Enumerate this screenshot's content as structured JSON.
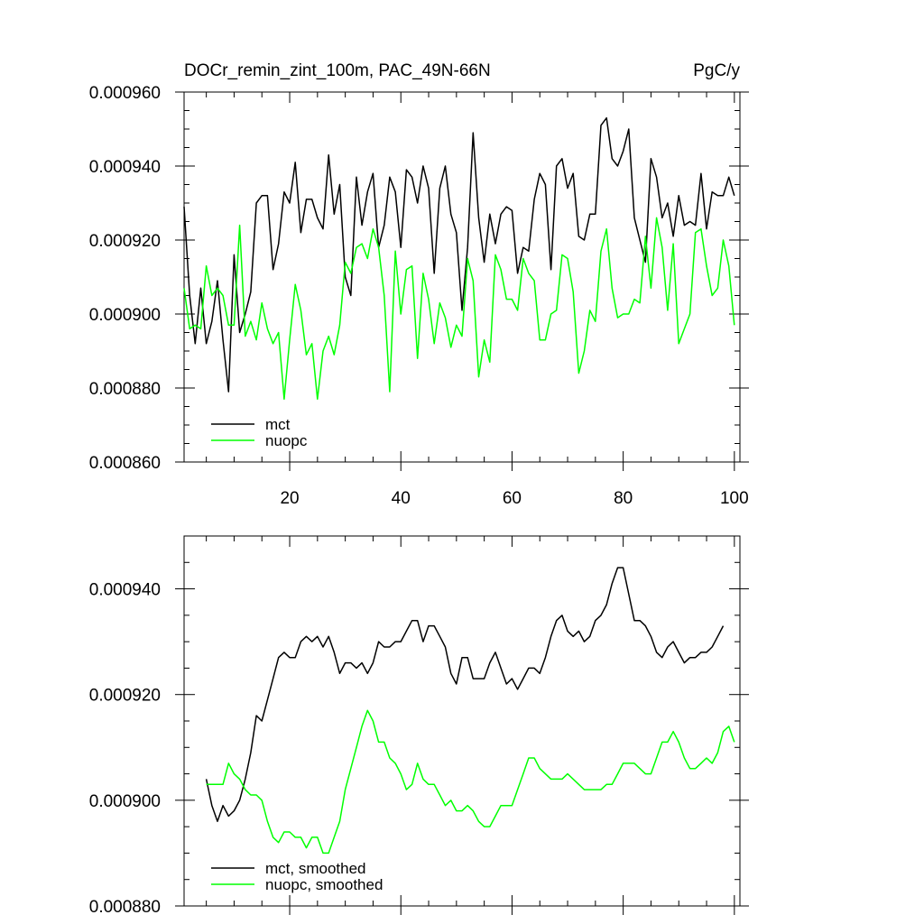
{
  "chart_data": [
    {
      "type": "line",
      "title": "DOCr_remin_zint_100m, PAC_49N-66N",
      "units": "PgC/y",
      "xlim": [
        1,
        101
      ],
      "ylim": [
        0.00086,
        0.00096
      ],
      "x_ticks": [
        20,
        40,
        60,
        80,
        100
      ],
      "x_tick_labels": [
        "20",
        "40",
        "60",
        "80",
        "100"
      ],
      "y_ticks": [
        0.00086,
        0.00088,
        0.0009,
        0.00092,
        0.00094,
        0.00096
      ],
      "y_tick_labels": [
        "0.000860",
        "0.000880",
        "0.000900",
        "0.000920",
        "0.000940",
        "0.000960"
      ],
      "legend_position": "bottom-left",
      "x_start": 1,
      "series": [
        {
          "name": "mct",
          "color": "#000000",
          "values": [
            0.000929,
            0.000905,
            0.000892,
            0.000907,
            0.000892,
            0.000898,
            0.000909,
            0.000893,
            0.000879,
            0.000916,
            0.000895,
            0.0009,
            0.000906,
            0.00093,
            0.000932,
            0.000932,
            0.000912,
            0.000919,
            0.000933,
            0.00093,
            0.000941,
            0.000922,
            0.000931,
            0.000931,
            0.000926,
            0.000923,
            0.000943,
            0.000927,
            0.000935,
            0.00091,
            0.000905,
            0.000937,
            0.000924,
            0.000933,
            0.000938,
            0.000918,
            0.000924,
            0.000937,
            0.000933,
            0.000918,
            0.000939,
            0.000937,
            0.00093,
            0.00094,
            0.000934,
            0.000911,
            0.000934,
            0.00094,
            0.000927,
            0.000922,
            0.000901,
            0.000918,
            0.000949,
            0.000926,
            0.000914,
            0.000927,
            0.000919,
            0.000927,
            0.000929,
            0.000928,
            0.000911,
            0.000918,
            0.000917,
            0.000931,
            0.000938,
            0.000935,
            0.000912,
            0.00094,
            0.000942,
            0.000934,
            0.000938,
            0.000921,
            0.00092,
            0.000927,
            0.000927,
            0.000951,
            0.000953,
            0.000942,
            0.00094,
            0.000944,
            0.00095,
            0.000926,
            0.00092,
            0.000914,
            0.000942,
            0.000937,
            0.000926,
            0.00093,
            0.000921,
            0.000932,
            0.000924,
            0.000925,
            0.000924,
            0.000938,
            0.000923,
            0.000933,
            0.000932,
            0.000932,
            0.000937,
            0.000932
          ]
        },
        {
          "name": "nuopc",
          "color": "#00ff00",
          "values": [
            0.000907,
            0.000896,
            0.000897,
            0.000896,
            0.000913,
            0.000905,
            0.000907,
            0.000905,
            0.000897,
            0.000897,
            0.000924,
            0.000894,
            0.000898,
            0.000893,
            0.000903,
            0.000896,
            0.000892,
            0.000895,
            0.000877,
            0.000893,
            0.000908,
            0.000901,
            0.000889,
            0.000892,
            0.000877,
            0.00089,
            0.000894,
            0.000889,
            0.000897,
            0.000914,
            0.000911,
            0.000918,
            0.000919,
            0.000915,
            0.000923,
            0.000918,
            0.000905,
            0.000879,
            0.000917,
            0.0009,
            0.000912,
            0.000913,
            0.000888,
            0.000911,
            0.000904,
            0.000892,
            0.000903,
            0.000899,
            0.000891,
            0.000897,
            0.000894,
            0.000915,
            0.000909,
            0.000883,
            0.000893,
            0.000887,
            0.000916,
            0.000912,
            0.000904,
            0.000904,
            0.000901,
            0.000915,
            0.000911,
            0.000909,
            0.000893,
            0.000893,
            0.0009,
            0.000901,
            0.000916,
            0.000915,
            0.000906,
            0.000884,
            0.00089,
            0.000901,
            0.000898,
            0.000917,
            0.000923,
            0.000907,
            0.000899,
            0.0009,
            0.0009,
            0.000904,
            0.000903,
            0.000921,
            0.000907,
            0.000926,
            0.000918,
            0.000901,
            0.000919,
            0.000892,
            0.000896,
            0.0009,
            0.000922,
            0.000923,
            0.000913,
            0.000905,
            0.000907,
            0.00092,
            0.000913,
            0.000897
          ]
        }
      ]
    },
    {
      "type": "line",
      "title": "",
      "xlim": [
        1,
        101
      ],
      "ylim": [
        0.00088,
        0.00095
      ],
      "x_ticks": [
        20,
        40,
        60,
        80,
        100
      ],
      "x_tick_labels": [],
      "y_ticks": [
        0.00088,
        0.0009,
        0.00092,
        0.00094
      ],
      "y_tick_labels": [
        "0.000880",
        "0.000900",
        "0.000920",
        "0.000940"
      ],
      "legend_position": "bottom-left",
      "x_start": 5,
      "series": [
        {
          "name": "mct, smoothed",
          "color": "#000000",
          "values": [
            0.000904,
            0.000899,
            0.000896,
            0.000899,
            0.000897,
            0.000898,
            0.0009,
            0.000904,
            0.000909,
            0.000916,
            0.000915,
            0.000919,
            0.000923,
            0.000927,
            0.000928,
            0.000927,
            0.000927,
            0.00093,
            0.000931,
            0.00093,
            0.000931,
            0.000929,
            0.000931,
            0.000928,
            0.000924,
            0.000926,
            0.000926,
            0.000925,
            0.000926,
            0.000924,
            0.000926,
            0.00093,
            0.000929,
            0.000929,
            0.00093,
            0.00093,
            0.000932,
            0.000934,
            0.000934,
            0.00093,
            0.000933,
            0.000933,
            0.000931,
            0.000929,
            0.000924,
            0.000922,
            0.000927,
            0.000927,
            0.000923,
            0.000923,
            0.000923,
            0.000926,
            0.000928,
            0.000925,
            0.000922,
            0.000923,
            0.000921,
            0.000923,
            0.000925,
            0.000925,
            0.000924,
            0.000927,
            0.000931,
            0.000934,
            0.000935,
            0.000932,
            0.000931,
            0.000932,
            0.00093,
            0.000931,
            0.000934,
            0.000935,
            0.000937,
            0.000941,
            0.000944,
            0.000944,
            0.000939,
            0.000934,
            0.000934,
            0.000933,
            0.000931,
            0.000928,
            0.000927,
            0.000929,
            0.00093,
            0.000928,
            0.000926,
            0.000927,
            0.000927,
            0.000928,
            0.000928,
            0.000929,
            0.000931,
            0.000933
          ]
        },
        {
          "name": "nuopc, smoothed",
          "color": "#00ff00",
          "values": [
            0.000903,
            0.000903,
            0.000903,
            0.000903,
            0.000907,
            0.000905,
            0.000904,
            0.000902,
            0.000901,
            0.000901,
            0.0009,
            0.000896,
            0.000893,
            0.000892,
            0.000894,
            0.000894,
            0.000893,
            0.000893,
            0.000891,
            0.000893,
            0.000893,
            0.00089,
            0.00089,
            0.000893,
            0.000896,
            0.000902,
            0.000906,
            0.00091,
            0.000914,
            0.000917,
            0.000915,
            0.000911,
            0.000911,
            0.000908,
            0.000907,
            0.000905,
            0.000902,
            0.000903,
            0.000907,
            0.000904,
            0.000903,
            0.000903,
            0.000901,
            0.000899,
            0.0009,
            0.000898,
            0.000898,
            0.000899,
            0.000898,
            0.000896,
            0.000895,
            0.000895,
            0.000897,
            0.000899,
            0.000899,
            0.000899,
            0.000902,
            0.000905,
            0.000908,
            0.000908,
            0.000906,
            0.000905,
            0.000904,
            0.000904,
            0.000904,
            0.000905,
            0.000904,
            0.000903,
            0.000902,
            0.000902,
            0.000902,
            0.000902,
            0.000903,
            0.000903,
            0.000905,
            0.000907,
            0.000907,
            0.000907,
            0.000906,
            0.000905,
            0.000905,
            0.000908,
            0.000911,
            0.000911,
            0.000913,
            0.000911,
            0.000908,
            0.000906,
            0.000906,
            0.000907,
            0.000908,
            0.000907,
            0.000909,
            0.000913,
            0.000914,
            0.000911
          ]
        }
      ]
    }
  ]
}
